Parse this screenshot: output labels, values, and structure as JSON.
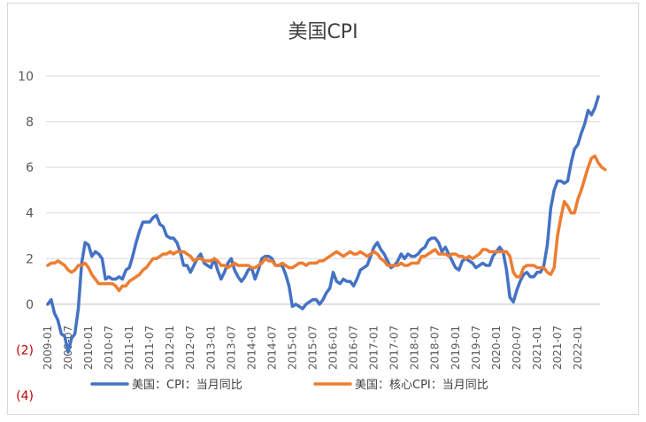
{
  "chart_data": {
    "type": "line",
    "title": "美国CPI",
    "ylim": [
      -4,
      10
    ],
    "ytick_labels": [
      {
        "value": 10,
        "label": "10",
        "color": "#595959"
      },
      {
        "value": 8,
        "label": "8",
        "color": "#595959"
      },
      {
        "value": 6,
        "label": "6",
        "color": "#595959"
      },
      {
        "value": 4,
        "label": "4",
        "color": "#595959"
      },
      {
        "value": 2,
        "label": "2",
        "color": "#595959"
      },
      {
        "value": 0,
        "label": "0",
        "color": "#595959"
      },
      {
        "value": -2,
        "label": "(2)",
        "color": "#c00000"
      },
      {
        "value": -4,
        "label": "(4)",
        "color": "#c00000"
      }
    ],
    "x_tick_labels": [
      "2009-01",
      "2009-07",
      "2010-01",
      "2010-07",
      "2011-01",
      "2011-07",
      "2012-01",
      "2012-07",
      "2013-01",
      "2013-07",
      "2014-01",
      "2014-07",
      "2015-01",
      "2015-07",
      "2016-01",
      "2016-07",
      "2017-01",
      "2017-07",
      "2018-01",
      "2018-07",
      "2019-01",
      "2019-07",
      "2020-01",
      "2020-07",
      "2021-01",
      "2021-07",
      "2022-01"
    ],
    "x_start": "2009-01",
    "grid": "horizontal",
    "legend_position": "bottom",
    "series": [
      {
        "name": "美国：CPI：当月同比",
        "color": "#4472c4",
        "values": [
          0.0,
          0.2,
          -0.4,
          -0.7,
          -1.3,
          -1.4,
          -2.1,
          -1.5,
          -1.3,
          -0.2,
          1.8,
          2.7,
          2.6,
          2.1,
          2.3,
          2.2,
          2.0,
          1.1,
          1.2,
          1.1,
          1.1,
          1.2,
          1.1,
          1.5,
          1.6,
          2.1,
          2.7,
          3.2,
          3.6,
          3.6,
          3.6,
          3.8,
          3.9,
          3.5,
          3.4,
          3.0,
          2.9,
          2.9,
          2.7,
          2.3,
          1.7,
          1.7,
          1.4,
          1.7,
          2.0,
          2.2,
          1.8,
          1.7,
          1.6,
          2.0,
          1.5,
          1.1,
          1.4,
          1.8,
          2.0,
          1.5,
          1.2,
          1.0,
          1.2,
          1.5,
          1.6,
          1.1,
          1.5,
          2.0,
          2.1,
          2.1,
          2.0,
          1.7,
          1.7,
          1.7,
          1.3,
          0.8,
          -0.1,
          0.0,
          -0.1,
          -0.2,
          0.0,
          0.1,
          0.2,
          0.2,
          0.0,
          0.2,
          0.5,
          0.7,
          1.4,
          1.0,
          0.9,
          1.1,
          1.0,
          1.0,
          0.8,
          1.1,
          1.5,
          1.6,
          1.7,
          2.1,
          2.5,
          2.7,
          2.4,
          2.2,
          1.9,
          1.6,
          1.7,
          1.9,
          2.2,
          2.0,
          2.2,
          2.1,
          2.1,
          2.2,
          2.4,
          2.5,
          2.8,
          2.9,
          2.9,
          2.7,
          2.3,
          2.5,
          2.2,
          1.9,
          1.6,
          1.5,
          1.9,
          2.0,
          1.9,
          1.8,
          1.6,
          1.7,
          1.8,
          1.7,
          1.7,
          2.1,
          2.3,
          2.5,
          2.3,
          1.5,
          0.3,
          0.1,
          0.6,
          1.0,
          1.3,
          1.4,
          1.2,
          1.2,
          1.4,
          1.4,
          1.7,
          2.6,
          4.2,
          5.0,
          5.4,
          5.4,
          5.3,
          5.4,
          6.2,
          6.8,
          7.0,
          7.5,
          7.9,
          8.5,
          8.3,
          8.6,
          9.1
        ]
      },
      {
        "name": "美国：核心CPI：当月同比",
        "color": "#ed7d31",
        "values": [
          1.7,
          1.8,
          1.8,
          1.9,
          1.8,
          1.7,
          1.5,
          1.4,
          1.5,
          1.7,
          1.7,
          1.8,
          1.6,
          1.3,
          1.1,
          0.9,
          0.9,
          0.9,
          0.9,
          0.9,
          0.8,
          0.6,
          0.8,
          0.8,
          1.0,
          1.1,
          1.2,
          1.3,
          1.5,
          1.6,
          1.8,
          2.0,
          2.0,
          2.1,
          2.2,
          2.2,
          2.3,
          2.2,
          2.3,
          2.3,
          2.3,
          2.2,
          2.1,
          1.9,
          2.0,
          2.0,
          1.9,
          1.9,
          1.9,
          2.0,
          1.9,
          1.7,
          1.7,
          1.6,
          1.7,
          1.8,
          1.7,
          1.7,
          1.7,
          1.7,
          1.6,
          1.6,
          1.7,
          1.8,
          2.0,
          1.9,
          1.9,
          1.7,
          1.7,
          1.8,
          1.7,
          1.6,
          1.6,
          1.7,
          1.8,
          1.8,
          1.7,
          1.8,
          1.8,
          1.8,
          1.9,
          1.9,
          2.0,
          2.1,
          2.2,
          2.3,
          2.2,
          2.1,
          2.2,
          2.3,
          2.2,
          2.2,
          2.3,
          2.2,
          2.1,
          2.2,
          2.3,
          2.2,
          2.0,
          1.9,
          1.7,
          1.7,
          1.7,
          1.7,
          1.8,
          1.7,
          1.7,
          1.8,
          1.8,
          1.8,
          2.1,
          2.1,
          2.2,
          2.3,
          2.4,
          2.2,
          2.2,
          2.2,
          2.1,
          2.2,
          2.2,
          2.1,
          2.1,
          2.0,
          2.1,
          2.0,
          2.1,
          2.2,
          2.4,
          2.4,
          2.3,
          2.3,
          2.3,
          2.3,
          2.3,
          2.3,
          2.1,
          1.4,
          1.2,
          1.2,
          1.6,
          1.7,
          1.7,
          1.7,
          1.6,
          1.6,
          1.6,
          1.4,
          1.3,
          1.6,
          3.0,
          3.8,
          4.5,
          4.3,
          4.0,
          4.0,
          4.6,
          5.0,
          5.5,
          6.0,
          6.4,
          6.5,
          6.2,
          6.0,
          5.9
        ]
      }
    ]
  }
}
